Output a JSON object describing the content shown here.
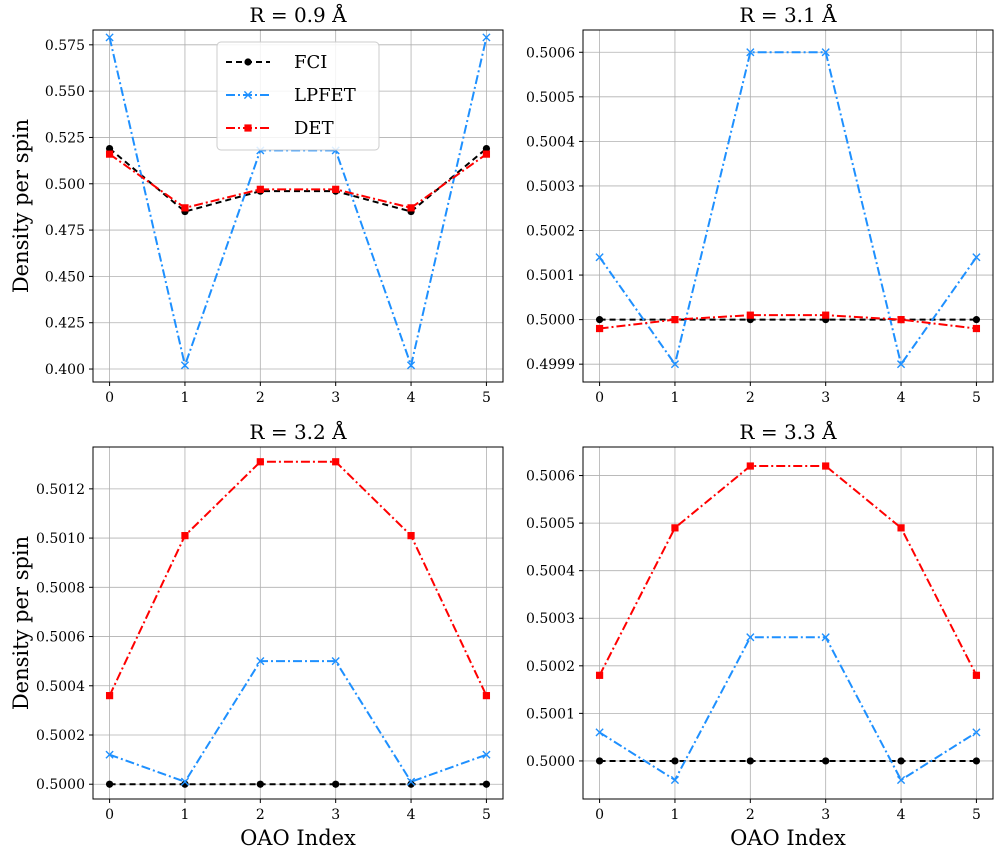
{
  "legend": {
    "entries": [
      {
        "name": "FCI",
        "color": "#000000"
      },
      {
        "name": "LPFET",
        "color": "#1e90ff"
      },
      {
        "name": "DET",
        "color": "#ff0000"
      }
    ]
  },
  "chart_data": [
    {
      "type": "line",
      "title": "R = 0.9 Å",
      "xlabel": "",
      "ylabel": "Density per spin",
      "x": [
        0,
        1,
        2,
        3,
        4,
        5
      ],
      "ylim": [
        0.393,
        0.583
      ],
      "yticks": [
        "0.400",
        "0.425",
        "0.450",
        "0.475",
        "0.500",
        "0.525",
        "0.550",
        "0.575"
      ],
      "yticks_values": [
        0.4,
        0.425,
        0.45,
        0.475,
        0.5,
        0.525,
        0.55,
        0.575
      ],
      "series": [
        {
          "name": "FCI",
          "values": [
            0.519,
            0.485,
            0.496,
            0.496,
            0.485,
            0.519
          ]
        },
        {
          "name": "LPFET",
          "values": [
            0.579,
            0.402,
            0.518,
            0.518,
            0.402,
            0.579
          ]
        },
        {
          "name": "DET",
          "values": [
            0.516,
            0.487,
            0.497,
            0.497,
            0.487,
            0.516
          ]
        }
      ]
    },
    {
      "type": "line",
      "title": "R = 3.1 Å",
      "xlabel": "",
      "ylabel": "",
      "x": [
        0,
        1,
        2,
        3,
        4,
        5
      ],
      "ylim": [
        0.49986,
        0.50065
      ],
      "yticks": [
        "0.4999",
        "0.5000",
        "0.5001",
        "0.5002",
        "0.5003",
        "0.5004",
        "0.5005",
        "0.5006"
      ],
      "yticks_values": [
        0.4999,
        0.5,
        0.5001,
        0.5002,
        0.5003,
        0.5004,
        0.5005,
        0.5006
      ],
      "series": [
        {
          "name": "FCI",
          "values": [
            0.5,
            0.5,
            0.5,
            0.5,
            0.5,
            0.5
          ]
        },
        {
          "name": "LPFET",
          "values": [
            0.50014,
            0.4999,
            0.5006,
            0.5006,
            0.4999,
            0.50014
          ]
        },
        {
          "name": "DET",
          "values": [
            0.49998,
            0.5,
            0.50001,
            0.50001,
            0.5,
            0.49998
          ]
        }
      ]
    },
    {
      "type": "line",
      "title": "R = 3.2 Å",
      "xlabel": "OAO Index",
      "ylabel": "Density per spin",
      "x": [
        0,
        1,
        2,
        3,
        4,
        5
      ],
      "ylim": [
        0.49994,
        0.50137
      ],
      "yticks": [
        "0.5000",
        "0.5002",
        "0.5004",
        "0.5006",
        "0.5008",
        "0.5010",
        "0.5012"
      ],
      "yticks_values": [
        0.5,
        0.5002,
        0.5004,
        0.5006,
        0.5008,
        0.501,
        0.5012
      ],
      "series": [
        {
          "name": "FCI",
          "values": [
            0.5,
            0.5,
            0.5,
            0.5,
            0.5,
            0.5
          ]
        },
        {
          "name": "LPFET",
          "values": [
            0.50012,
            0.50001,
            0.5005,
            0.5005,
            0.50001,
            0.50012
          ]
        },
        {
          "name": "DET",
          "values": [
            0.50036,
            0.50101,
            0.50131,
            0.50131,
            0.50101,
            0.50036
          ]
        }
      ]
    },
    {
      "type": "line",
      "title": "R = 3.3 Å",
      "xlabel": "OAO Index",
      "ylabel": "",
      "x": [
        0,
        1,
        2,
        3,
        4,
        5
      ],
      "ylim": [
        0.49992,
        0.50066
      ],
      "yticks": [
        "0.5000",
        "0.5001",
        "0.5002",
        "0.5003",
        "0.5004",
        "0.5005",
        "0.5006"
      ],
      "yticks_values": [
        0.5,
        0.5001,
        0.5002,
        0.5003,
        0.5004,
        0.5005,
        0.5006
      ],
      "series": [
        {
          "name": "FCI",
          "values": [
            0.5,
            0.5,
            0.5,
            0.5,
            0.5,
            0.5
          ]
        },
        {
          "name": "LPFET",
          "values": [
            0.50006,
            0.49996,
            0.50026,
            0.50026,
            0.49996,
            0.50006
          ]
        },
        {
          "name": "DET",
          "values": [
            0.50018,
            0.50049,
            0.50062,
            0.50062,
            0.50049,
            0.50018
          ]
        }
      ]
    }
  ]
}
